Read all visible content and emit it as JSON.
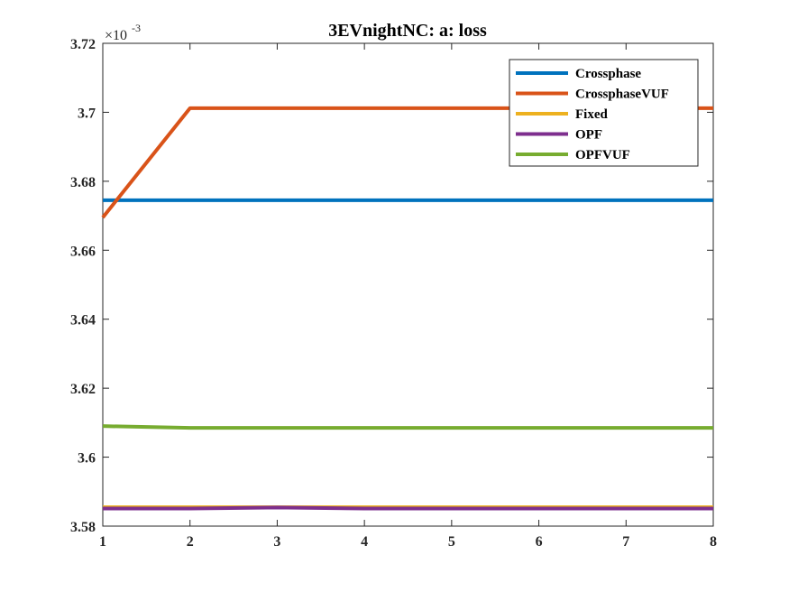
{
  "chart_data": {
    "type": "line",
    "title": "3EVnightNC: a: loss",
    "xlabel": "",
    "ylabel": "",
    "x": [
      1,
      2,
      3,
      4,
      5,
      6,
      7,
      8
    ],
    "xlim": [
      1,
      8
    ],
    "ylim": [
      3.58,
      3.72
    ],
    "y_scale_label": "×10",
    "y_scale_exponent": "-3",
    "x_ticks": [
      "1",
      "2",
      "3",
      "4",
      "5",
      "6",
      "7",
      "8"
    ],
    "y_ticks": [
      "3.58",
      "3.6",
      "3.62",
      "3.64",
      "3.66",
      "3.68",
      "3.7",
      "3.72"
    ],
    "grid": false,
    "legend_position": "top-right",
    "series": [
      {
        "name": "Crossphase",
        "color": "#0072BD",
        "values": [
          3.6745,
          3.6745,
          3.6745,
          3.6745,
          3.6745,
          3.6745,
          3.6745,
          3.6745
        ]
      },
      {
        "name": "CrossphaseVUF",
        "color": "#D95319",
        "values": [
          3.6695,
          3.7012,
          3.7012,
          3.7012,
          3.7012,
          3.7012,
          3.7012,
          3.7012
        ]
      },
      {
        "name": "Fixed",
        "color": "#EDB120",
        "values": [
          3.5855,
          3.5855,
          3.5855,
          3.5855,
          3.5855,
          3.5855,
          3.5855,
          3.5855
        ]
      },
      {
        "name": "OPF",
        "color": "#7E2F8E",
        "values": [
          3.5851,
          3.5851,
          3.5854,
          3.5851,
          3.5851,
          3.5851,
          3.5851,
          3.5851
        ]
      },
      {
        "name": "OPFVUF",
        "color": "#77AC30",
        "values": [
          3.609,
          3.6085,
          3.6085,
          3.6085,
          3.6085,
          3.6085,
          3.6085,
          3.6085
        ]
      }
    ]
  }
}
